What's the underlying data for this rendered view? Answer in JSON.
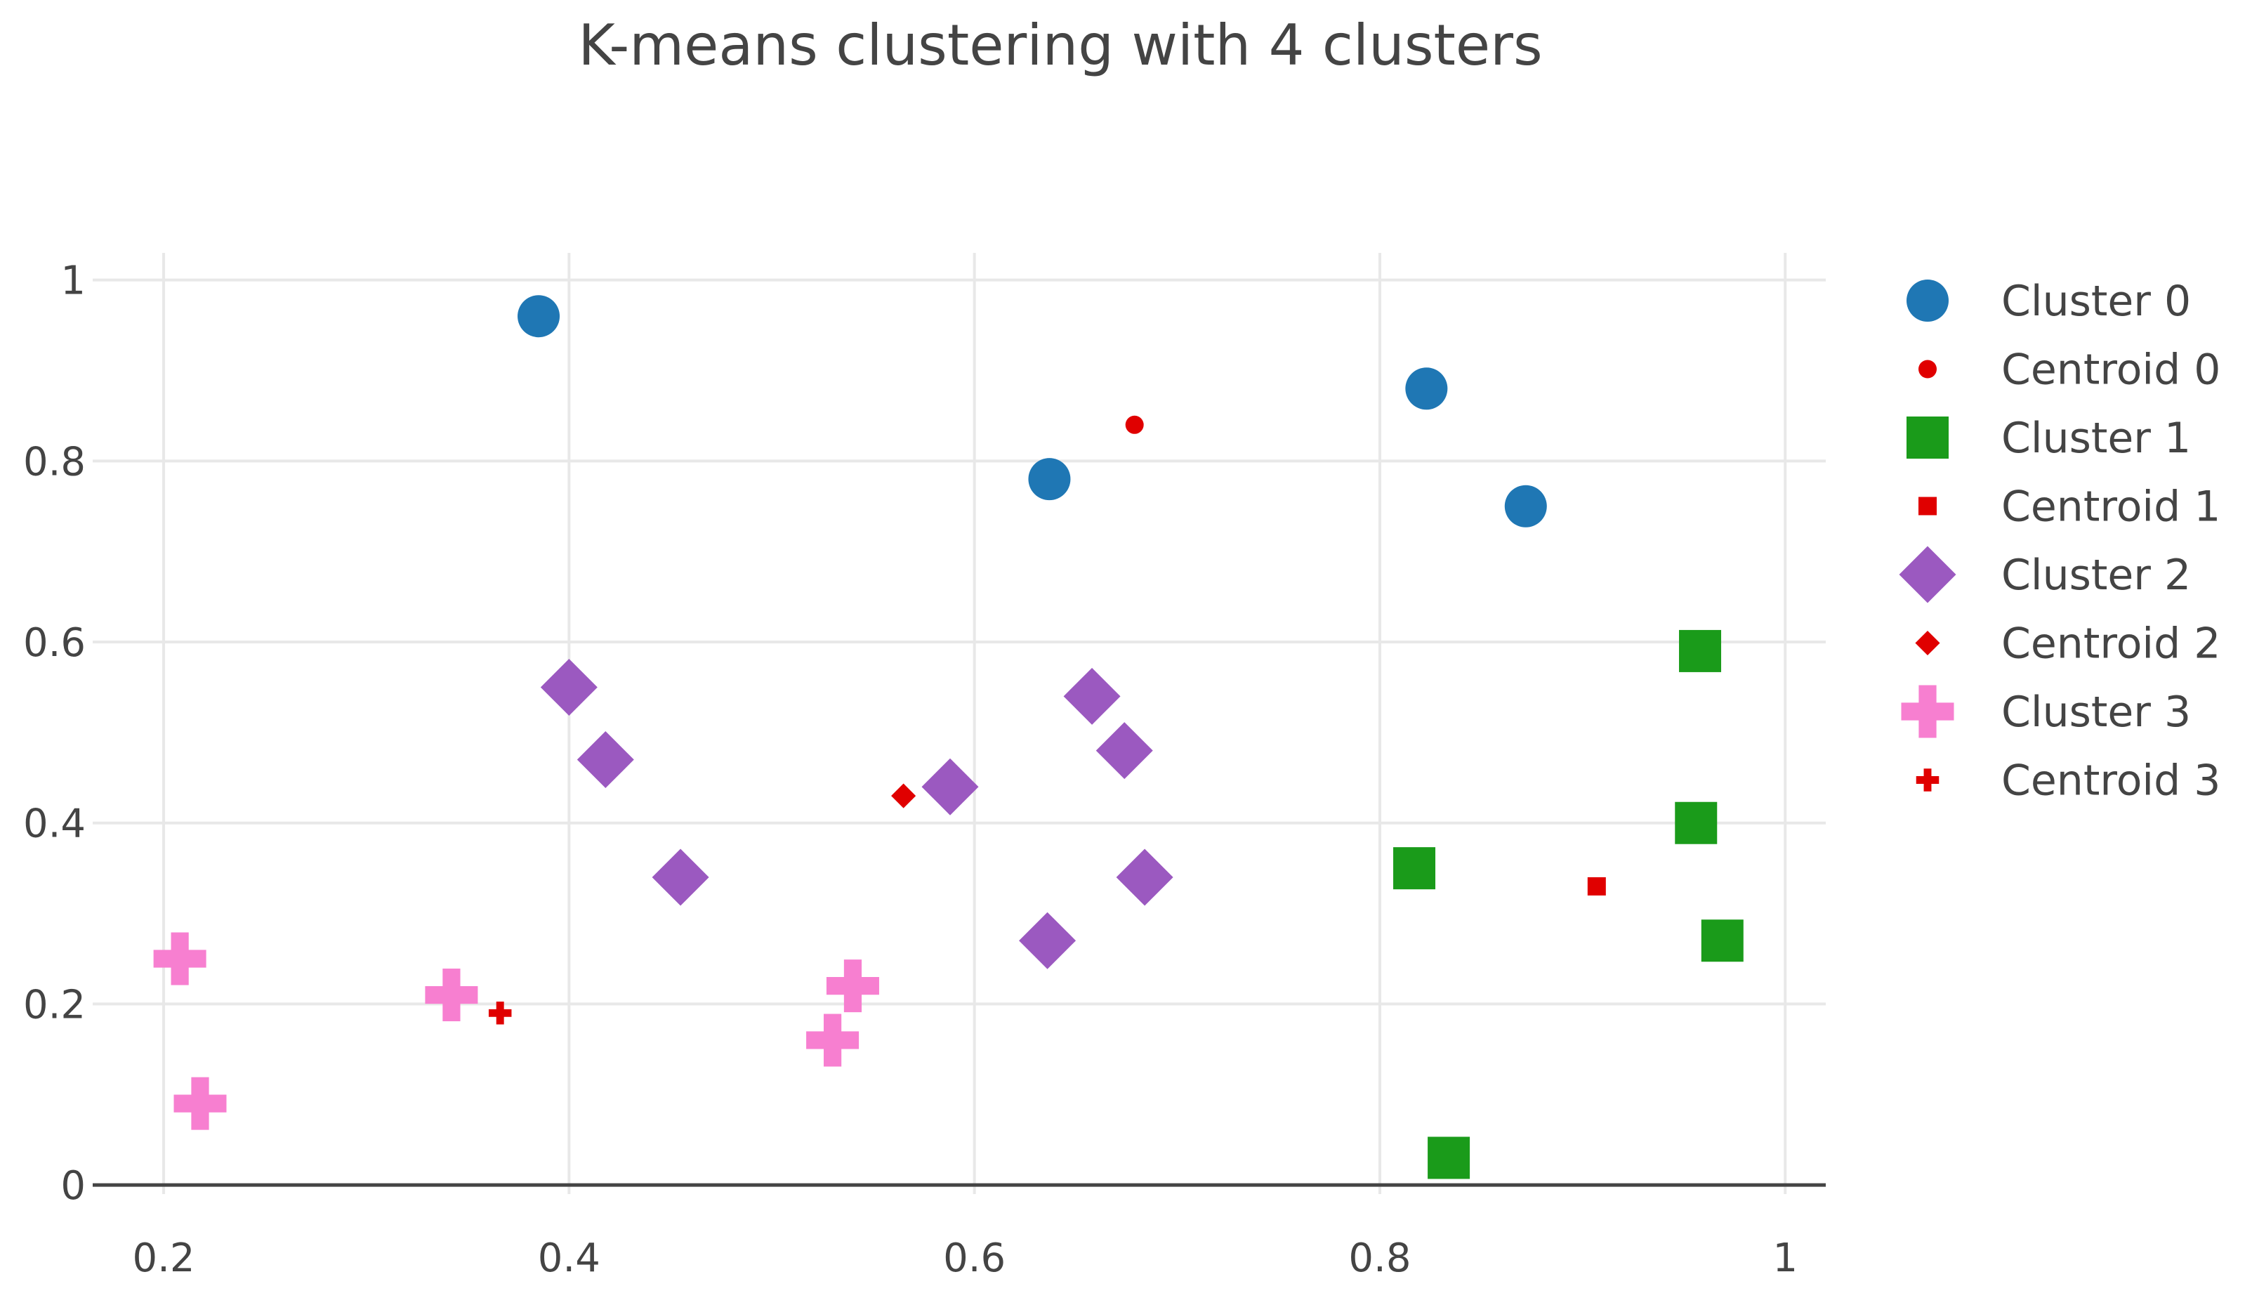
{
  "chart_data": {
    "type": "scatter",
    "title": "K-means clustering with 4 clusters",
    "xlabel": "",
    "ylabel": "",
    "xlim": [
      0.165,
      1.02
    ],
    "ylim": [
      -0.01,
      1.03
    ],
    "x_ticks": [
      0.2,
      0.4,
      0.6,
      0.8,
      1
    ],
    "x_tick_labels": [
      "0.2",
      "0.4",
      "0.6",
      "0.8",
      "1"
    ],
    "y_ticks": [
      0,
      0.2,
      0.4,
      0.6,
      0.8,
      1
    ],
    "y_tick_labels": [
      "0",
      "0.2",
      "0.4",
      "0.6",
      "0.8",
      "1"
    ],
    "grid": true,
    "legend_position": "right",
    "series": [
      {
        "name": "Cluster 0",
        "marker": "circle",
        "color": "#1f77b4",
        "size": "large",
        "x": [
          0.385,
          0.637,
          0.823,
          0.872
        ],
        "y": [
          0.96,
          0.78,
          0.88,
          0.75
        ]
      },
      {
        "name": "Centroid 0",
        "marker": "circle",
        "color": "#e00000",
        "size": "small",
        "x": [
          0.679
        ],
        "y": [
          0.84
        ]
      },
      {
        "name": "Cluster 1",
        "marker": "square",
        "color": "#1a9b1a",
        "size": "large",
        "x": [
          0.958,
          0.956,
          0.969,
          0.817,
          0.834
        ],
        "y": [
          0.59,
          0.4,
          0.27,
          0.35,
          0.03
        ]
      },
      {
        "name": "Centroid 1",
        "marker": "square",
        "color": "#e00000",
        "size": "small",
        "x": [
          0.907
        ],
        "y": [
          0.33
        ]
      },
      {
        "name": "Cluster 2",
        "marker": "diamond",
        "color": "#9b59c0",
        "size": "large",
        "x": [
          0.4,
          0.418,
          0.455,
          0.588,
          0.658,
          0.674,
          0.684,
          0.636
        ],
        "y": [
          0.55,
          0.47,
          0.34,
          0.44,
          0.54,
          0.48,
          0.34,
          0.27
        ]
      },
      {
        "name": "Centroid 2",
        "marker": "diamond",
        "color": "#e00000",
        "size": "small",
        "x": [
          0.565
        ],
        "y": [
          0.43
        ]
      },
      {
        "name": "Cluster 3",
        "marker": "cross",
        "color": "#f77fd0",
        "size": "large",
        "x": [
          0.208,
          0.218,
          0.342,
          0.53,
          0.54
        ],
        "y": [
          0.25,
          0.09,
          0.21,
          0.16,
          0.22
        ]
      },
      {
        "name": "Centroid 3",
        "marker": "cross",
        "color": "#e00000",
        "size": "small",
        "x": [
          0.366
        ],
        "y": [
          0.19
        ]
      }
    ]
  }
}
